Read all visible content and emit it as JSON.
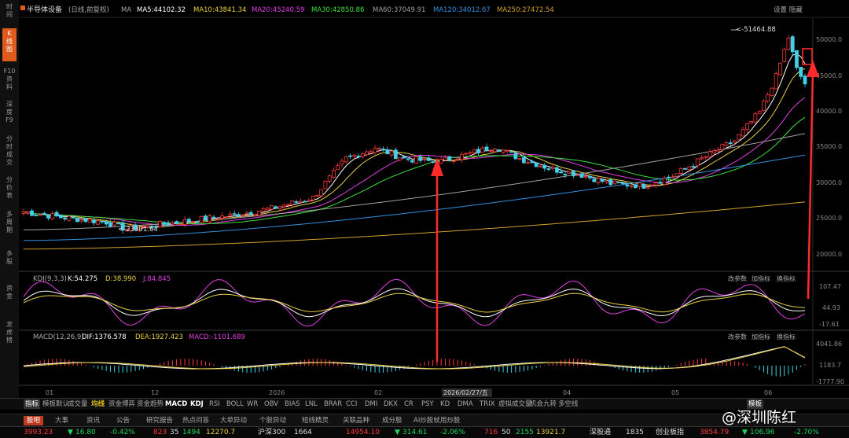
{
  "leftbar": {
    "items": [
      "时\n间",
      "K\n线\n图",
      "F10\n资\n料",
      "深\n度\nF9",
      "分\n时\n成\n交",
      "分\n价\n表",
      "多\n周\n期",
      "多\n股",
      "资\n金",
      "龙\n虎\n榜"
    ]
  },
  "header": {
    "title": "半导体设备",
    "period": "(日线,前复权)",
    "ma_label": "MA",
    "ma5": "MA5:44102.32",
    "ma10": "MA10:43841.34",
    "ma20": "MA20:45240.59",
    "ma30": "MA30:42850.86",
    "ma60": "MA60:37049.91",
    "ma120": "MA120:34012.67",
    "ma250": "MA250:27472.54",
    "settings": "设置 隐藏"
  },
  "main_chart": {
    "high_label": "51464.88",
    "low_label": "23301.64",
    "y_ticks": [
      "50000.0",
      "45000.0",
      "40000.0",
      "35000.0",
      "30000.0",
      "25000.0",
      "20000.0"
    ]
  },
  "kdj": {
    "title": "KDJ(9,3,3)",
    "k": "K:54.275",
    "d": "D:38.990",
    "j": "J:84.845",
    "buttons": [
      "改参数",
      "加指标",
      "换指标"
    ],
    "y_ticks": [
      "107.47",
      "44.93",
      "-17.61"
    ]
  },
  "macd": {
    "title": "MACD(12,26,9)",
    "dif": "DIF:1376.578",
    "dea": "DEA:1927.423",
    "macd": "MACD:-1101.689",
    "buttons": [
      "改参数",
      "加指标",
      "换指标"
    ],
    "y_ticks": [
      "4041.86",
      "1183.7",
      "-1777.90"
    ]
  },
  "x_axis": {
    "labels": [
      "01",
      "12",
      "2026",
      "02",
      "2026/02/27/五",
      "04",
      "05",
      "06"
    ]
  },
  "indicator_tabs": [
    "指标",
    "模板默认",
    "成交量",
    "均线",
    "资金博弈",
    "资金趋势",
    "MACD",
    "KDJ",
    "RSI",
    "BOLL",
    "WR",
    "OBV",
    "BIAS",
    "LNL",
    "BRAR",
    "CCI",
    "DMI",
    "DKX",
    "CR",
    "PSY",
    "KD",
    "DMA",
    "TRIX",
    "虚拟成交量",
    "机会九转",
    "多空线"
  ],
  "indicator_tabs_right": "模板",
  "bottom_tabs": [
    "股吧",
    "大事",
    "资讯",
    "公告",
    "研究报告",
    "热点问答",
    "大单异动",
    "个股异动",
    "短线精灵",
    "关联品种",
    "成分股",
    "AI炒股就用炒股"
  ],
  "status": {
    "sh_index": "3993.23",
    "sh_change": "16.80",
    "sh_pct": "-0.42%",
    "sh_vol": "823",
    "sh_a": "35",
    "sh_b": "1494",
    "sh_amount": "12270.7",
    "hs300_label": "沪深300",
    "hs300_v": "1664",
    "sz_value": "14954.10",
    "sz_change": "314.61",
    "sz_pct": "-2.06%",
    "sz_a": "716",
    "sz_b": "50",
    "sz_c": "2155",
    "sz_amount": "13921.7",
    "sz300_label": "深股通",
    "sz300_v": "1835",
    "cy_label": "创业板指",
    "cy_value": "3854.79",
    "cy_change": "106.96",
    "cy_pct": "-2.70%"
  },
  "watermark": "@深圳陈红",
  "colors": {
    "up": "#ff3b3b",
    "down": "#3fd0e8",
    "ma5": "#ffffff",
    "ma10": "#e8d040",
    "ma20": "#e040e0",
    "ma30": "#40e040",
    "ma60": "#a0a0a0",
    "ma120": "#3090e0",
    "ma250": "#d0a030",
    "annotation": "#ff2b2b"
  }
}
